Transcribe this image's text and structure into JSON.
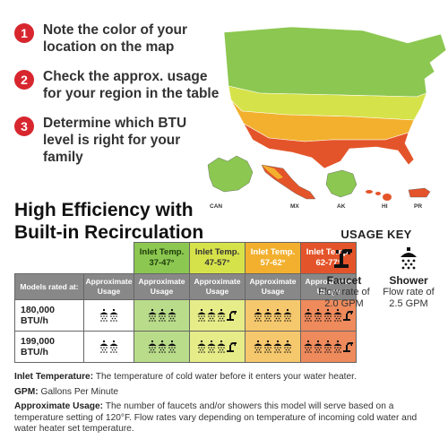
{
  "steps": [
    {
      "number": "1",
      "text": "Note the color of your location on the map"
    },
    {
      "number": "2",
      "text": "Check the approx. usage for your region in the table"
    },
    {
      "number": "3",
      "text": "Determine which BTU level is right for your family"
    }
  ],
  "map": {
    "labels": {
      "can": "CAN",
      "mx": "MX",
      "ak": "AK",
      "hi": "HI",
      "pr": "PR"
    },
    "colors": {
      "green": "#8cc751",
      "yellow": "#d6e24a",
      "orange": "#f2b02e",
      "red": "#e4542a"
    }
  },
  "title": {
    "line1": "High Efficiency with",
    "line2": "Built-in Recirculation"
  },
  "table": {
    "row_header_label": "Models rated at:",
    "columns": [
      {
        "temp_label": "Inlet Temp.",
        "temp_range": "37-47°",
        "sub": "Approximate Usage",
        "color": "#8cc751"
      },
      {
        "temp_label": "Inlet Temp.",
        "temp_range": "47-57°",
        "sub": "Approximate Usage",
        "color": "#d6e24a"
      },
      {
        "temp_label": "Inlet Temp.",
        "temp_range": "57-62°",
        "sub": "Approximate Usage",
        "color": "#f2b02e"
      },
      {
        "temp_label": "Inlet Temp.",
        "temp_range": "62-77°",
        "sub": "Approximate Usage",
        "color": "#e4542a"
      }
    ],
    "first_sub": "Approximate Usage",
    "rows": [
      {
        "label": "180,000 BTU/h",
        "cells": [
          {
            "showers": 2,
            "faucets": 0
          },
          {
            "showers": 3,
            "faucets": 0
          },
          {
            "showers": 3,
            "faucets": 1
          },
          {
            "showers": 4,
            "faucets": 0
          },
          {
            "showers": 4,
            "faucets": 1
          }
        ]
      },
      {
        "label": "199,000 BTU/h",
        "cells": [
          {
            "showers": 2,
            "faucets": 0
          },
          {
            "showers": 3,
            "faucets": 0
          },
          {
            "showers": 3,
            "faucets": 1
          },
          {
            "showers": 4,
            "faucets": 0
          },
          {
            "showers": 4,
            "faucets": 1
          }
        ]
      }
    ]
  },
  "usage_key": {
    "title": "USAGE KEY",
    "faucet": {
      "name": "Faucet",
      "desc": "Flow rate of 2.0 GPM"
    },
    "shower": {
      "name": "Shower",
      "desc": "Flow rate of 2.5 GPM"
    }
  },
  "notes": {
    "inlet_label": "Inlet Temperature:",
    "inlet_text": "The temperature of cold water before it enters your water heater.",
    "gpm_label": "GPM:",
    "gpm_text": "Gallons Per Minute",
    "usage_label": "Approximate Usage:",
    "usage_text": "The number of faucets and/or showers this model will serve based on a temperature setting of 120°F. Flow rates vary depending on temperature of incoming cold water and water heater set temperature."
  }
}
